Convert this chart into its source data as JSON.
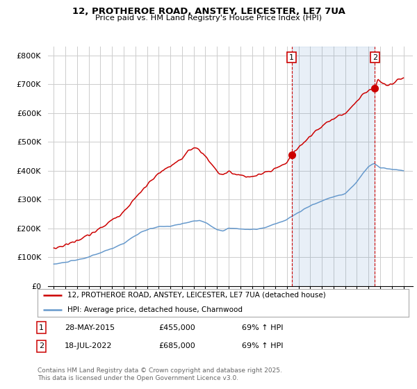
{
  "title_line1": "12, PROTHEROE ROAD, ANSTEY, LEICESTER, LE7 7UA",
  "title_line2": "Price paid vs. HM Land Registry's House Price Index (HPI)",
  "legend_label1": "12, PROTHEROE ROAD, ANSTEY, LEICESTER, LE7 7UA (detached house)",
  "legend_label2": "HPI: Average price, detached house, Charnwood",
  "annotation1": {
    "num": "1",
    "date": "28-MAY-2015",
    "price": "£455,000",
    "hpi": "69% ↑ HPI",
    "x_year": 2015.4,
    "y_val": 455000
  },
  "annotation2": {
    "num": "2",
    "date": "18-JUL-2022",
    "price": "£685,000",
    "hpi": "69% ↑ HPI",
    "x_year": 2022.55,
    "y_val": 685000
  },
  "footer": "Contains HM Land Registry data © Crown copyright and database right 2025.\nThis data is licensed under the Open Government Licence v3.0.",
  "ylim": [
    0,
    830000
  ],
  "yticks": [
    0,
    100000,
    200000,
    300000,
    400000,
    500000,
    600000,
    700000,
    800000
  ],
  "ytick_labels": [
    "£0",
    "£100K",
    "£200K",
    "£300K",
    "£400K",
    "£500K",
    "£600K",
    "£700K",
    "£800K"
  ],
  "red_color": "#cc0000",
  "blue_color": "#6699cc",
  "shade_color": "#ddeeff",
  "background_color": "#ffffff",
  "grid_color": "#cccccc",
  "xlim_left": 1994.5,
  "xlim_right": 2025.8
}
